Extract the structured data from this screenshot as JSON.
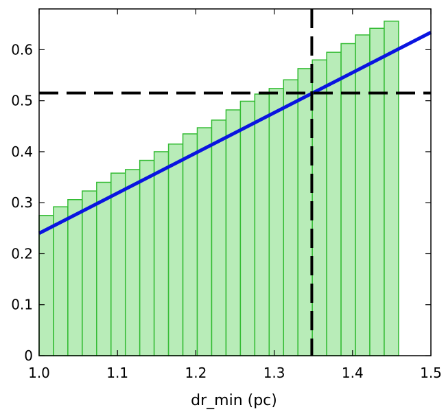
{
  "chart_data": {
    "type": "bar",
    "title": "",
    "xlabel": "dr_min (pc)",
    "ylabel": "",
    "xlim": [
      1.0,
      1.5
    ],
    "ylim": [
      0,
      0.68
    ],
    "grid": false,
    "x_ticks": [
      1.0,
      1.1,
      1.2,
      1.3,
      1.4,
      1.5
    ],
    "x_tick_labels": [
      "1.0",
      "1.1",
      "1.2",
      "1.3",
      "1.4",
      "1.5"
    ],
    "y_ticks": [
      0,
      0.1,
      0.2,
      0.3,
      0.4,
      0.5,
      0.6
    ],
    "y_tick_labels": [
      "0",
      "0.1",
      "0.2",
      "0.3",
      "0.4",
      "0.5",
      "0.6"
    ],
    "bin_width": 0.01835,
    "bin_start": 1.0,
    "bars": [
      0.275,
      0.292,
      0.306,
      0.323,
      0.34,
      0.358,
      0.365,
      0.383,
      0.4,
      0.415,
      0.435,
      0.447,
      0.462,
      0.482,
      0.499,
      0.513,
      0.524,
      0.541,
      0.563,
      0.58,
      0.595,
      0.612,
      0.629,
      0.642,
      0.656
    ],
    "bar_fill": "#b8ecb8",
    "bar_edge": "#33bb33",
    "fit_line": {
      "x": [
        1.0,
        1.5
      ],
      "y": [
        0.24,
        0.634
      ],
      "color": "#0a14e0"
    },
    "vline": {
      "x": 1.348,
      "color": "#000000",
      "style": "dashed"
    },
    "hline": {
      "y": 0.515,
      "color": "#000000",
      "style": "dashed"
    }
  }
}
